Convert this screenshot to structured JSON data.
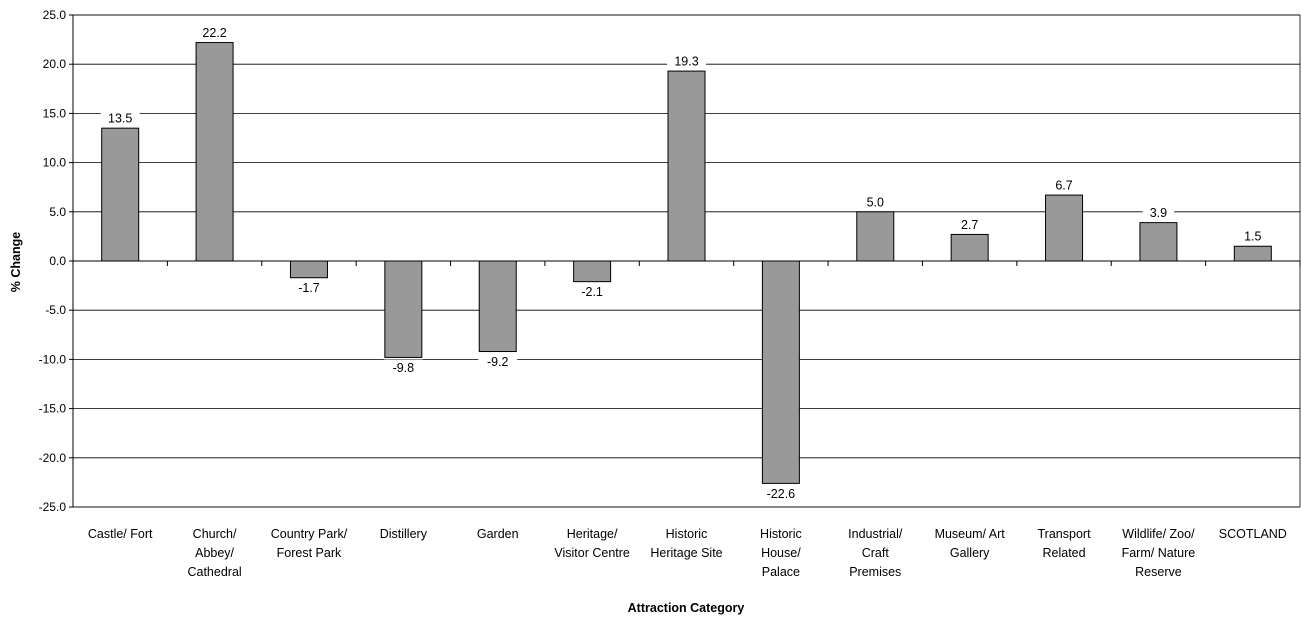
{
  "chart_data": {
    "type": "bar",
    "title": "",
    "xlabel": "Attraction Category",
    "ylabel": "% Change",
    "ylim": [
      -25,
      25
    ],
    "ytick_step": 5,
    "yticks": [
      "25.0",
      "20.0",
      "15.0",
      "10.0",
      "5.0",
      "0.0",
      "-5.0",
      "-10.0",
      "-15.0",
      "-20.0",
      "-25.0"
    ],
    "grid": true,
    "legend": "none",
    "bar_color": "#999999",
    "categories": [
      "Castle/ Fort",
      "Church/ Abbey/ Cathedral",
      "Country Park/ Forest Park",
      "Distillery",
      "Garden",
      "Heritage/ Visitor Centre",
      "Historic Heritage Site",
      "Historic House/ Palace",
      "Industrial/ Craft Premises",
      "Museum/ Art Gallery",
      "Transport Related",
      "Wildlife/ Zoo/ Farm/ Nature Reserve",
      "SCOTLAND"
    ],
    "category_lines": [
      [
        "Castle/ Fort"
      ],
      [
        "Church/",
        "Abbey/",
        "Cathedral"
      ],
      [
        "Country Park/",
        "Forest Park"
      ],
      [
        "Distillery"
      ],
      [
        "Garden"
      ],
      [
        "Heritage/",
        "Visitor Centre"
      ],
      [
        "Historic",
        "Heritage Site"
      ],
      [
        "Historic",
        "House/",
        "Palace"
      ],
      [
        "Industrial/",
        "Craft",
        "Premises"
      ],
      [
        "Museum/ Art",
        "Gallery"
      ],
      [
        "Transport",
        "Related"
      ],
      [
        "Wildlife/ Zoo/",
        "Farm/ Nature",
        "Reserve"
      ],
      [
        "SCOTLAND"
      ]
    ],
    "values": [
      13.5,
      22.2,
      -1.7,
      -9.8,
      -9.2,
      -2.1,
      19.3,
      -22.6,
      5.0,
      2.7,
      6.7,
      3.9,
      1.5
    ],
    "data_labels": [
      "13.5",
      "22.2",
      "-1.7",
      "-9.8",
      "-9.2",
      "-2.1",
      "19.3",
      "-22.6",
      "5.0",
      "2.7",
      "6.7",
      "3.9",
      "1.5"
    ]
  }
}
